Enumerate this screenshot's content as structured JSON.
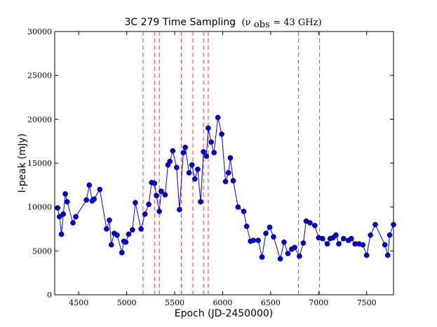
{
  "chart_data": {
    "type": "line",
    "title": "3C 279 Time Sampling",
    "title_suffix": "(ν",
    "title_subscript": "obs",
    "title_value": " =  43 GHz)",
    "xlabel": "Epoch (JD-2450000)",
    "ylabel": "I-peak (mJy)",
    "xlim": [
      4250,
      7780
    ],
    "ylim": [
      0,
      30000
    ],
    "xticks": [
      4500,
      5000,
      5500,
      6000,
      6500,
      7000,
      7500
    ],
    "yticks": [
      0,
      5000,
      10000,
      15000,
      20000,
      25000,
      30000
    ],
    "xtick_labels": [
      "4500",
      "5000",
      "5500",
      "6000",
      "6500",
      "7000",
      "7500"
    ],
    "ytick_labels": [
      "0",
      "5000",
      "10000",
      "15000",
      "20000",
      "25000",
      "30000"
    ],
    "line_color": "#0000ee",
    "marker_color": "#0000cc",
    "vline_color": "#ff3333",
    "vlines": [
      5170,
      5290,
      5340,
      5570,
      5690,
      5800,
      5850,
      6790,
      7010
    ],
    "series": [
      {
        "name": "I-peak",
        "x": [
          4280,
          4300,
          4320,
          4340,
          4360,
          4380,
          4440,
          4470,
          4580,
          4610,
          4640,
          4660,
          4720,
          4790,
          4820,
          4840,
          4870,
          4900,
          4950,
          4970,
          4990,
          5020,
          5060,
          5090,
          5150,
          5190,
          5230,
          5260,
          5290,
          5310,
          5340,
          5360,
          5400,
          5430,
          5450,
          5480,
          5520,
          5550,
          5590,
          5610,
          5650,
          5680,
          5710,
          5740,
          5770,
          5800,
          5830,
          5850,
          5880,
          5910,
          5950,
          5990,
          6030,
          6060,
          6080,
          6110,
          6160,
          6220,
          6250,
          6290,
          6320,
          6370,
          6410,
          6450,
          6490,
          6530,
          6600,
          6640,
          6680,
          6720,
          6750,
          6800,
          6840,
          6870,
          6910,
          6960,
          7000,
          7040,
          7090,
          7120,
          7150,
          7180,
          7210,
          7260,
          7310,
          7340,
          7380,
          7420,
          7460,
          7500,
          7540,
          7590,
          7690,
          7720,
          7740,
          7780
        ],
        "y": [
          9900,
          8900,
          6900,
          9200,
          11500,
          10600,
          8200,
          8900,
          10800,
          12500,
          10700,
          10900,
          12000,
          7500,
          8500,
          5700,
          7000,
          6800,
          4800,
          6100,
          6000,
          6900,
          7400,
          10500,
          7500,
          9200,
          10300,
          12800,
          12700,
          11300,
          9500,
          11800,
          11400,
          14800,
          15200,
          16400,
          14500,
          9700,
          16200,
          16800,
          13900,
          14800,
          13200,
          14300,
          10600,
          16300,
          15800,
          19000,
          17400,
          16200,
          20200,
          18300,
          12900,
          13900,
          15600,
          13000,
          10000,
          9500,
          7800,
          6100,
          6200,
          6200,
          4300,
          7000,
          7700,
          6600,
          4100,
          6000,
          4700,
          5200,
          5400,
          4400,
          5900,
          8400,
          8200,
          7900,
          6500,
          6400,
          5800,
          6400,
          6500,
          6800,
          5800,
          6400,
          6200,
          6400,
          5800,
          5800,
          5700,
          4500,
          6800,
          8000,
          5700,
          4500,
          6800,
          8000
        ]
      }
    ]
  }
}
